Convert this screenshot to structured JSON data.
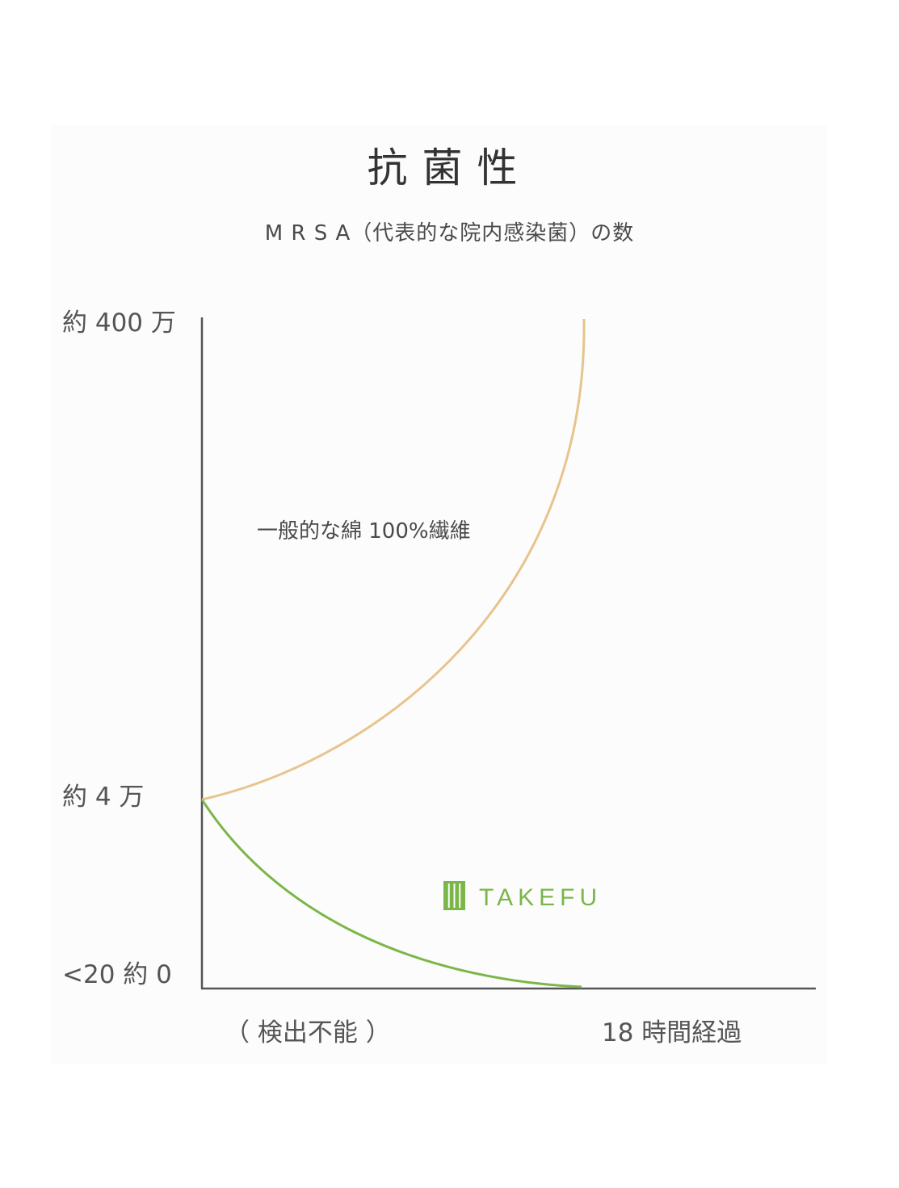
{
  "chart_data": {
    "type": "line",
    "title": "抗菌性",
    "subtitle": "M R S A（代表的な院内感染菌）の数",
    "y_tick_labels": [
      "約 400 万",
      "約 4 万",
      "<20 約 0"
    ],
    "y_tick_values": [
      4000000,
      40000,
      20
    ],
    "y_scale": "log",
    "x_labels": [
      "（ 検出不能 ）",
      "18 時間経過"
    ],
    "x_range_hours": [
      0,
      18
    ],
    "series": [
      {
        "name": "一般的な綿 100%繊維",
        "color": "#e8c48d",
        "x": [
          0,
          18
        ],
        "y": [
          40000,
          4000000
        ]
      },
      {
        "name": "TAKEFU",
        "color": "#7ab648",
        "x": [
          0,
          18
        ],
        "y": [
          40000,
          20
        ]
      }
    ],
    "grid": false,
    "legend": "inline labels"
  }
}
